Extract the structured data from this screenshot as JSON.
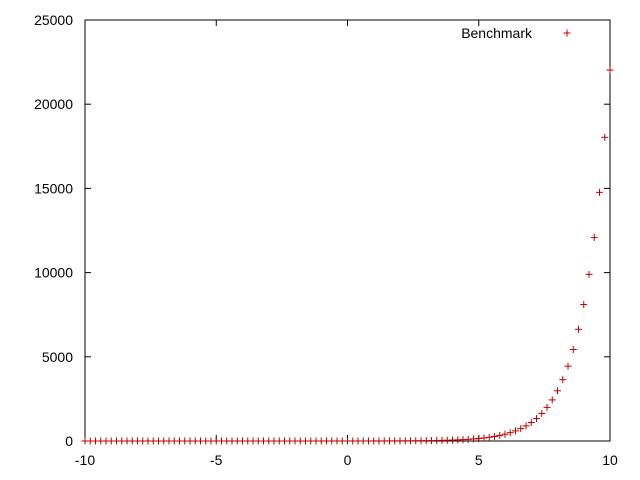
{
  "chart_data": {
    "type": "scatter",
    "title": "",
    "xlabel": "",
    "ylabel": "",
    "xlim": [
      -10,
      10
    ],
    "ylim": [
      0,
      25000
    ],
    "x_ticks": [
      -10,
      -5,
      0,
      5,
      10
    ],
    "y_ticks": [
      0,
      5000,
      10000,
      15000,
      20000,
      25000
    ],
    "x_tick_labels": [
      "-10",
      "-5",
      "0",
      "5",
      "10"
    ],
    "y_tick_labels": [
      "0",
      "5000",
      "10000",
      "15000",
      "20000",
      "25000"
    ],
    "grid": false,
    "legend_position": "top-right",
    "series": [
      {
        "name": "Benchmark",
        "marker": "+",
        "color": "#c00000",
        "x": [
          -10.0,
          -9.8,
          -9.6,
          -9.4,
          -9.2,
          -9.0,
          -8.8,
          -8.6,
          -8.4,
          -8.2,
          -8.0,
          -7.8,
          -7.6,
          -7.4,
          -7.2,
          -7.0,
          -6.8,
          -6.6,
          -6.4,
          -6.2,
          -6.0,
          -5.8,
          -5.6,
          -5.4,
          -5.2,
          -5.0,
          -4.8,
          -4.6,
          -4.4,
          -4.2,
          -4.0,
          -3.8,
          -3.6,
          -3.4,
          -3.2,
          -3.0,
          -2.8,
          -2.6,
          -2.4,
          -2.2,
          -2.0,
          -1.8,
          -1.6,
          -1.4,
          -1.2,
          -1.0,
          -0.8,
          -0.6,
          -0.4,
          -0.2,
          0.0,
          0.2,
          0.4,
          0.6,
          0.8,
          1.0,
          1.2,
          1.4,
          1.6,
          1.8,
          2.0,
          2.2,
          2.4,
          2.6,
          2.8,
          3.0,
          3.2,
          3.4,
          3.6,
          3.8,
          4.0,
          4.2,
          4.4,
          4.6,
          4.8,
          5.0,
          5.2,
          5.4,
          5.6,
          5.8,
          6.0,
          6.2,
          6.4,
          6.6,
          6.8,
          7.0,
          7.2,
          7.4,
          7.6,
          7.8,
          8.0,
          8.2,
          8.4,
          8.6,
          8.8,
          9.0,
          9.2,
          9.4,
          9.6,
          9.8,
          10.0
        ],
        "y": [
          0,
          0,
          0,
          0,
          0,
          0,
          0,
          0,
          0,
          0,
          0,
          0,
          0,
          0,
          0,
          0,
          0,
          0,
          0,
          0,
          0,
          0,
          0,
          0,
          0,
          0,
          0,
          0,
          0,
          0,
          0,
          0,
          0,
          0,
          0,
          0,
          0,
          0,
          0,
          0,
          0,
          0,
          0,
          0,
          0,
          1,
          1,
          1,
          1,
          1,
          1,
          1,
          1,
          2,
          2,
          3,
          3,
          4,
          5,
          6,
          7,
          9,
          11,
          13,
          16,
          20,
          25,
          30,
          37,
          45,
          55,
          67,
          81,
          99,
          122,
          148,
          181,
          221,
          270,
          330,
          403,
          493,
          602,
          735,
          898,
          1097,
          1339,
          1636,
          1998,
          2440,
          2981,
          3641,
          4447,
          5432,
          6634,
          8103,
          9897,
          12088,
          14765,
          18034,
          22026
        ]
      }
    ]
  }
}
